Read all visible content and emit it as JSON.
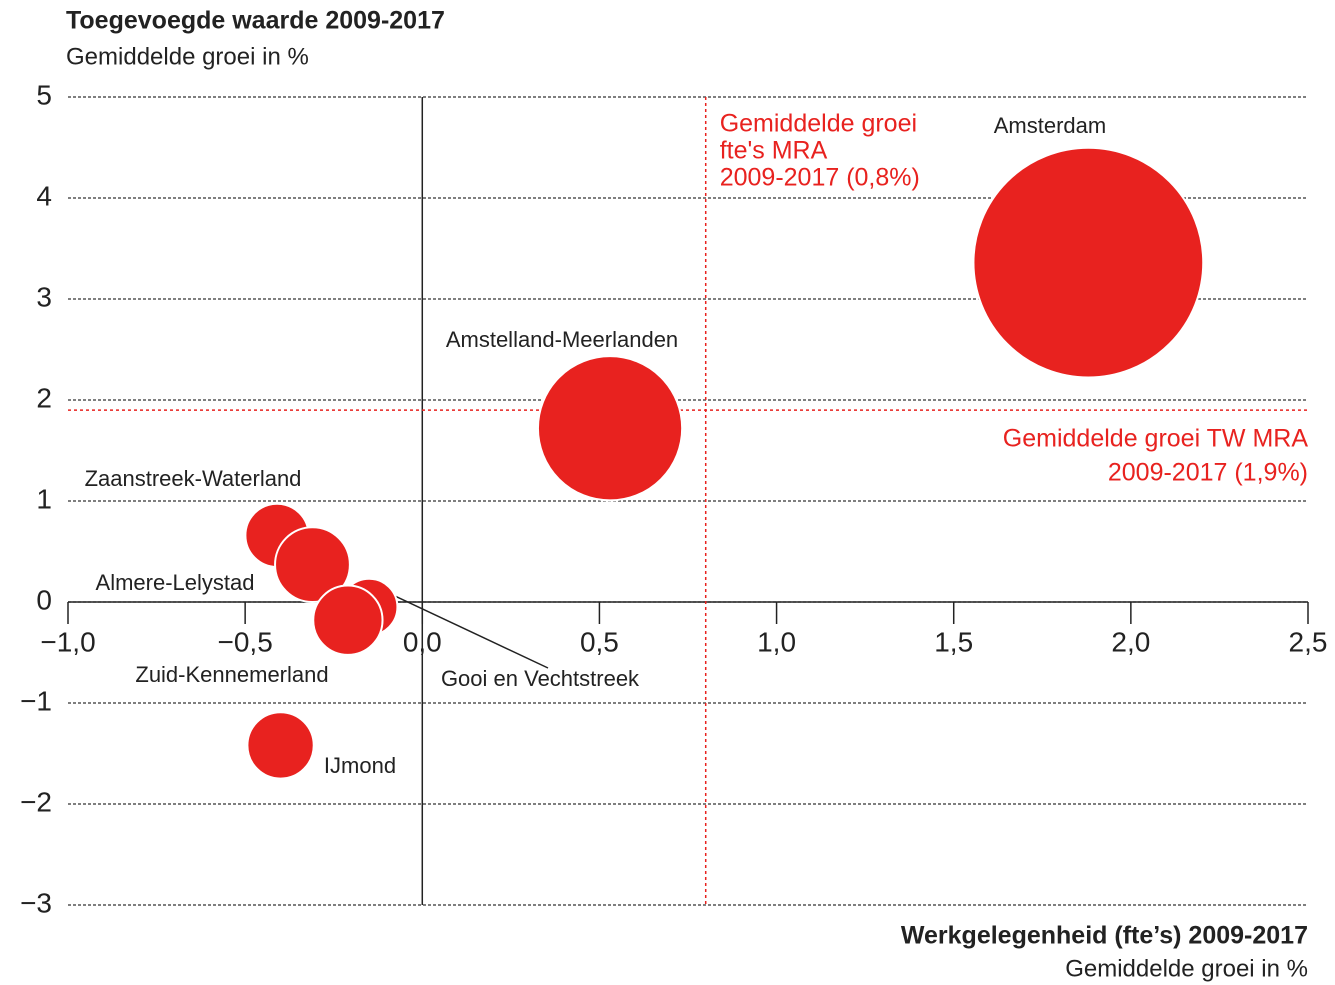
{
  "chart_data": {
    "type": "bubble",
    "title": "Toegevoegde waarde 2009-2017",
    "subtitle": "Gemiddelde groei in %",
    "x_label": "Werkgelegenheid (fte’s) 2009-2017",
    "x_sublabel": "Gemiddelde groei in %",
    "labels": [
      "Amsterdam",
      "Amstelland-Meerlanden",
      "Zaanstreek-Waterland",
      "Gooi en Vechtstreek",
      "Almere-Lelystad",
      "Zuid-Kennemerland",
      "IJmond"
    ],
    "x": [
      1.88,
      0.53,
      -0.41,
      -0.15,
      -0.31,
      -0.21,
      -0.4
    ],
    "y": [
      3.36,
      1.72,
      0.66,
      -0.05,
      0.37,
      -0.18,
      -1.42
    ],
    "sizes": [
      132,
      52,
      10,
      8,
      14,
      12,
      11
    ],
    "color": "#e8221f",
    "xlim": [
      -1.0,
      2.5
    ],
    "xticks": [
      {
        "value": -1.0,
        "label": "−1,0"
      },
      {
        "value": -0.5,
        "label": "−0,5"
      },
      {
        "value": 0,
        "label": "0,0"
      },
      {
        "value": 0.5,
        "label": "0,5"
      },
      {
        "value": 1.0,
        "label": "1,0"
      },
      {
        "value": 1.5,
        "label": "1,5"
      },
      {
        "value": 2.0,
        "label": "2,0"
      },
      {
        "value": 2.5,
        "label": "2,5"
      }
    ],
    "ylim": [
      -3,
      5
    ],
    "yticks": [
      5,
      4,
      3,
      2,
      1,
      0,
      {
        "value": -1,
        "label": "−1"
      },
      {
        "value": -2,
        "label": "−2"
      },
      {
        "value": -3,
        "label": "−3"
      }
    ],
    "grid": true,
    "reference_x": {
      "value": 0.8,
      "color": "#e8221f",
      "label_lines": [
        "Gemiddelde groei",
        "fte's MRA",
        "2009-2017 (0,8%)"
      ]
    },
    "reference_y": {
      "value": 1.9,
      "color": "#e8221f",
      "label_lines": [
        "Gemiddelde groei TW MRA",
        "2009-2017 (1,9%)"
      ]
    }
  }
}
